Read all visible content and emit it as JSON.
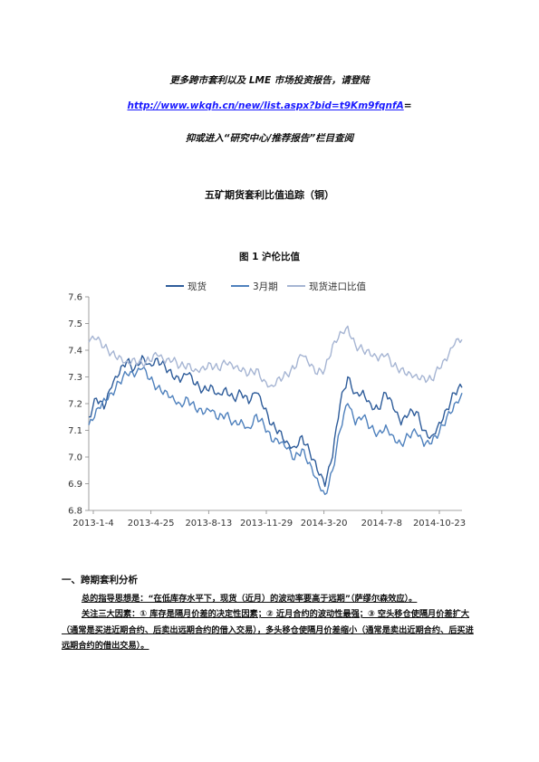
{
  "banner": {
    "line1": "更多跨市套利以及 LME 市场投资报告，请登陆",
    "link": "http://www.wkqh.cn/new/list.aspx?bid=t9Km9fqnfA",
    "link_suffix": "=",
    "line3": "抑或进入“研究中心/推荐报告”栏目查阅"
  },
  "report_title": "五矿期货套利比值追踪（铜）",
  "figure_title": "图 1    沪伦比值",
  "section": {
    "heading": "一、跨期套利分析",
    "para1": "总的指导思想是：“在低库存水平下，现货（近月）的波动率要高于远期”（萨缪尔森效应）。",
    "para2": "关注三大因素：① 库存是隔月价差的决定性因素；② 近月合约的波动性最强；③ 空头移仓使隔月价差扩大（通常是买进近期合约、后卖出远期合约的借入交易），多头移仓使隔月价差缩小（通常是卖出近期合约、后买进远期合约的借出交易）。"
  },
  "chart_data": {
    "type": "line",
    "title": "",
    "xlabel": "",
    "ylabel": "",
    "ylim": [
      6.8,
      7.6
    ],
    "yticks": [
      "6.8",
      "6.9",
      "7.0",
      "7.1",
      "7.2",
      "7.3",
      "7.4",
      "7.5",
      "7.6"
    ],
    "xtick_labels": [
      "2013-1-4",
      "2013-4-25",
      "2013-8-13",
      "2013-11-29",
      "2014-3-20",
      "2014-7-8",
      "2014-10-23"
    ],
    "legend_position": "top",
    "grid": false,
    "x_index": [
      0,
      10,
      20,
      30,
      40,
      50,
      60,
      70,
      80,
      90,
      100,
      110,
      120,
      130,
      140,
      150,
      160,
      170,
      180,
      190,
      200,
      210,
      220,
      230,
      240,
      250,
      260,
      270,
      280,
      290,
      300,
      310,
      320,
      330,
      340,
      350,
      360,
      370,
      380,
      390,
      400,
      410,
      420,
      430,
      440,
      450,
      460,
      470,
      480,
      490
    ],
    "series": [
      {
        "name": "现货",
        "color": "#2e5c9a",
        "values": [
          7.15,
          7.22,
          7.18,
          7.26,
          7.31,
          7.36,
          7.33,
          7.38,
          7.35,
          7.37,
          7.34,
          7.3,
          7.28,
          7.31,
          7.27,
          7.25,
          7.27,
          7.24,
          7.26,
          7.22,
          7.24,
          7.2,
          7.24,
          7.18,
          7.12,
          7.1,
          7.06,
          7.04,
          7.08,
          7.02,
          6.95,
          6.89,
          7.0,
          7.2,
          7.3,
          7.24,
          7.25,
          7.2,
          7.18,
          7.24,
          7.18,
          7.12,
          7.16,
          7.17,
          7.1,
          7.08,
          7.13,
          7.18,
          7.24,
          7.26
        ]
      },
      {
        "name": "3月期",
        "color": "#4f81bd",
        "values": [
          7.12,
          7.18,
          7.22,
          7.24,
          7.28,
          7.31,
          7.3,
          7.33,
          7.29,
          7.26,
          7.25,
          7.23,
          7.2,
          7.22,
          7.18,
          7.16,
          7.17,
          7.14,
          7.16,
          7.13,
          7.14,
          7.11,
          7.16,
          7.12,
          7.06,
          7.05,
          7.03,
          6.99,
          7.03,
          6.98,
          6.92,
          6.86,
          6.95,
          7.1,
          7.2,
          7.12,
          7.15,
          7.11,
          7.09,
          7.12,
          7.08,
          7.05,
          7.08,
          7.09,
          7.04,
          7.05,
          7.09,
          7.15,
          7.2,
          7.24
        ]
      },
      {
        "name": "现货进口比值",
        "color": "#a6b5d3",
        "values": [
          7.43,
          7.44,
          7.41,
          7.39,
          7.38,
          7.36,
          7.37,
          7.35,
          7.36,
          7.38,
          7.35,
          7.36,
          7.34,
          7.35,
          7.33,
          7.34,
          7.35,
          7.33,
          7.35,
          7.33,
          7.32,
          7.31,
          7.33,
          7.29,
          7.27,
          7.3,
          7.31,
          7.33,
          7.38,
          7.34,
          7.31,
          7.33,
          7.42,
          7.47,
          7.49,
          7.42,
          7.4,
          7.38,
          7.36,
          7.38,
          7.34,
          7.33,
          7.32,
          7.31,
          7.3,
          7.29,
          7.33,
          7.36,
          7.42,
          7.44
        ]
      }
    ]
  }
}
